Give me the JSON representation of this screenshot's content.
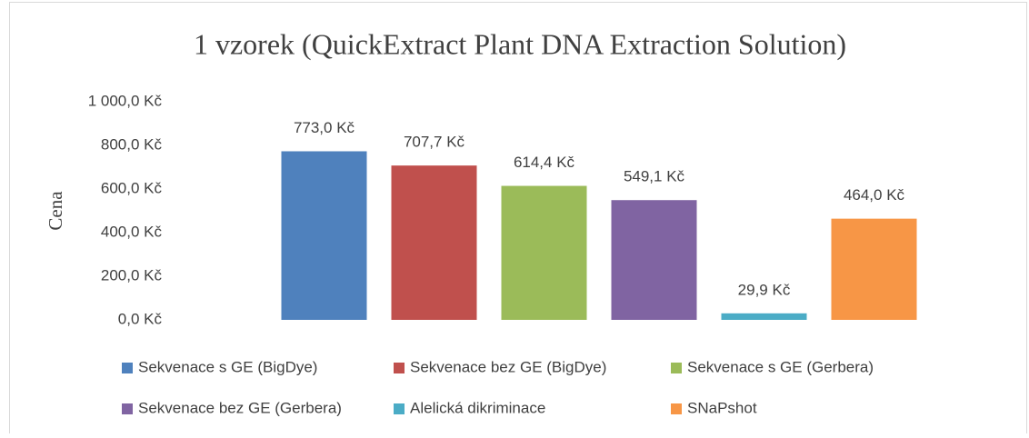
{
  "chart_data": {
    "type": "bar",
    "title": "1 vzorek (QuickExtract Plant DNA Extraction Solution)",
    "y_label": "Cena",
    "categories": [
      null
    ],
    "series": [
      {
        "name": "Sekvenace s GE (BigDye)",
        "color": "#4f81bd",
        "values": [
          773.0
        ],
        "value_labels": [
          "773,0 Kč"
        ]
      },
      {
        "name": "Sekvenace bez GE (BigDye)",
        "color": "#c0504d",
        "values": [
          707.7
        ],
        "value_labels": [
          "707,7 Kč"
        ]
      },
      {
        "name": "Sekvenace s GE (Gerbera)",
        "color": "#9bbb59",
        "values": [
          614.4
        ],
        "value_labels": [
          "614,4 Kč"
        ]
      },
      {
        "name": "Sekvenace bez GE (Gerbera)",
        "color": "#8064a2",
        "values": [
          549.1
        ],
        "value_labels": [
          "549,1 Kč"
        ]
      },
      {
        "name": "Alelická dikriminace",
        "color": "#4bacc6",
        "values": [
          29.9
        ],
        "value_labels": [
          "29,9 Kč"
        ]
      },
      {
        "name": "SNaPshot",
        "color": "#f79646",
        "values": [
          464.0
        ],
        "value_labels": [
          "464,0 Kč"
        ]
      }
    ],
    "ylim": [
      0,
      1000
    ],
    "yticks": [
      {
        "value": 0,
        "label": "0,0 Kč"
      },
      {
        "value": 200,
        "label": "200,0 Kč"
      },
      {
        "value": 400,
        "label": "400,0 Kč"
      },
      {
        "value": 600,
        "label": "600,0 Kč"
      },
      {
        "value": 800,
        "label": "800,0 Kč"
      },
      {
        "value": 1000,
        "label": "1 000,0 Kč"
      }
    ],
    "grid": false,
    "legend": "bottom"
  }
}
